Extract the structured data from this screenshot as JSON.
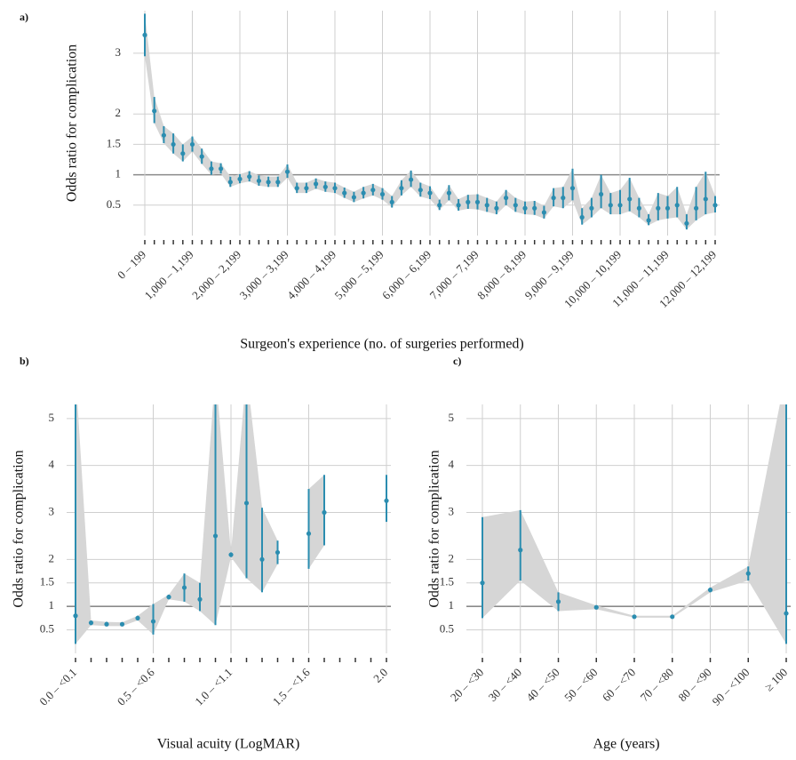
{
  "chart_data": [
    {
      "panel_label": "a)",
      "type": "errorbar",
      "ylabel": "Odds ratio for complication",
      "xlabel": "Surgeon's experience (no. of surgeries performed)",
      "categories": [
        "0 – 199",
        null,
        null,
        null,
        null,
        "1,000 – 1,199",
        null,
        null,
        null,
        null,
        "2,000 – 2,199",
        null,
        null,
        null,
        null,
        "3,000 – 3,199",
        null,
        null,
        null,
        null,
        "4,000 – 4,199",
        null,
        null,
        null,
        null,
        "5,000 – 5,199",
        null,
        null,
        null,
        null,
        "6,000 – 6,199",
        null,
        null,
        null,
        null,
        "7,000 – 7,199",
        null,
        null,
        null,
        null,
        "8,000 – 8,199",
        null,
        null,
        null,
        null,
        "9,000 – 9,199",
        null,
        null,
        null,
        null,
        "10,000 – 10,199",
        null,
        null,
        null,
        null,
        "11,000 – 11,199",
        null,
        null,
        null,
        null,
        "12,000 – 12,199"
      ],
      "values": [
        3.3,
        2.05,
        1.65,
        1.5,
        1.35,
        1.5,
        1.3,
        1.1,
        1.1,
        0.88,
        0.93,
        0.97,
        0.9,
        0.88,
        0.88,
        1.05,
        0.78,
        0.78,
        0.85,
        0.8,
        0.78,
        0.7,
        0.63,
        0.7,
        0.75,
        0.68,
        0.55,
        0.78,
        0.92,
        0.75,
        0.7,
        0.5,
        0.7,
        0.5,
        0.55,
        0.55,
        0.5,
        0.45,
        0.62,
        0.5,
        0.45,
        0.45,
        0.38,
        0.62,
        0.62,
        0.78,
        0.3,
        0.45,
        0.68,
        0.5,
        0.5,
        0.6,
        0.45,
        0.25,
        0.45,
        0.45,
        0.5,
        0.2,
        0.45,
        0.6,
        0.5
      ],
      "lower": [
        2.95,
        1.85,
        1.52,
        1.35,
        1.22,
        1.38,
        1.18,
        1.0,
        1.02,
        0.8,
        0.86,
        0.89,
        0.82,
        0.8,
        0.8,
        0.95,
        0.7,
        0.7,
        0.77,
        0.72,
        0.7,
        0.62,
        0.55,
        0.61,
        0.66,
        0.59,
        0.46,
        0.66,
        0.8,
        0.64,
        0.6,
        0.42,
        0.58,
        0.41,
        0.44,
        0.43,
        0.39,
        0.35,
        0.5,
        0.39,
        0.35,
        0.34,
        0.28,
        0.48,
        0.45,
        0.58,
        0.18,
        0.3,
        0.45,
        0.35,
        0.35,
        0.4,
        0.3,
        0.17,
        0.25,
        0.28,
        0.3,
        0.1,
        0.25,
        0.35,
        0.38
      ],
      "upper": [
        3.65,
        2.28,
        1.8,
        1.68,
        1.5,
        1.63,
        1.43,
        1.22,
        1.19,
        0.97,
        1.01,
        1.06,
        0.99,
        0.97,
        0.97,
        1.17,
        0.87,
        0.87,
        0.94,
        0.89,
        0.87,
        0.79,
        0.72,
        0.8,
        0.85,
        0.78,
        0.65,
        0.91,
        1.07,
        0.87,
        0.81,
        0.59,
        0.83,
        0.6,
        0.67,
        0.68,
        0.62,
        0.56,
        0.75,
        0.62,
        0.56,
        0.57,
        0.49,
        0.78,
        0.8,
        1.1,
        0.45,
        0.62,
        1.0,
        0.7,
        0.75,
        0.95,
        0.62,
        0.35,
        0.7,
        0.65,
        0.8,
        0.35,
        0.8,
        1.05,
        0.65
      ],
      "color": "#2b8db0",
      "band_color": "#d6d6d6",
      "reference_line": 1,
      "ylim": [
        0,
        3.7
      ],
      "yticks": [
        0.5,
        1,
        1.5,
        2,
        3
      ],
      "grid": true
    },
    {
      "panel_label": "b)",
      "type": "errorbar",
      "ylabel": "Odds ratio for complication",
      "xlabel": "Visual acuity (LogMAR)",
      "categories": [
        "0.0 – <0.1",
        null,
        null,
        null,
        null,
        "0.5 – <0.6",
        null,
        null,
        null,
        null,
        "1.0 – <1.1",
        null,
        null,
        null,
        null,
        "1.5 – <1.6",
        null,
        null,
        null,
        null,
        "2.0"
      ],
      "values": [
        0.8,
        0.65,
        0.62,
        0.62,
        0.75,
        0.68,
        1.2,
        1.4,
        1.15,
        2.5,
        2.1,
        3.2,
        2.0,
        2.15,
        null,
        2.55,
        3.0,
        null,
        null,
        null,
        3.25
      ],
      "lower": [
        0.2,
        0.6,
        0.58,
        0.58,
        0.7,
        0.4,
        1.15,
        1.1,
        0.9,
        0.6,
        2.05,
        1.6,
        1.3,
        1.9,
        null,
        1.8,
        2.3,
        null,
        null,
        null,
        2.8
      ],
      "upper": [
        6,
        0.7,
        0.67,
        0.66,
        0.8,
        1.05,
        1.25,
        1.7,
        1.5,
        6,
        2.15,
        6,
        3.1,
        2.4,
        null,
        3.5,
        3.8,
        null,
        null,
        null,
        3.8
      ],
      "color": "#2b8db0",
      "band_color": "#d6d6d6",
      "reference_line": 1,
      "ylim": [
        0,
        5.3
      ],
      "yticks": [
        0.5,
        1,
        1.5,
        2,
        3,
        4,
        5
      ],
      "grid": true
    },
    {
      "panel_label": "c)",
      "type": "errorbar",
      "ylabel": "Odds ratio for complication",
      "xlabel": "Age (years)",
      "categories": [
        "20 – <30",
        "30 – <40",
        "40 – <50",
        "50 – <60",
        "60 – <70",
        "70 – <80",
        "80 – <90",
        "90 – <100",
        "≥ 100"
      ],
      "values": [
        1.5,
        2.2,
        1.1,
        0.98,
        0.78,
        0.78,
        1.35,
        1.7,
        0.85
      ],
      "lower": [
        0.75,
        1.55,
        0.9,
        0.94,
        0.76,
        0.76,
        1.3,
        1.55,
        0.2
      ],
      "upper": [
        2.9,
        3.05,
        1.3,
        1.02,
        0.8,
        0.8,
        1.4,
        1.85,
        6
      ],
      "color": "#2b8db0",
      "band_color": "#d6d6d6",
      "reference_line": 1,
      "ylim": [
        0,
        5.3
      ],
      "yticks": [
        0.5,
        1,
        1.5,
        2,
        3,
        4,
        5
      ],
      "grid": true
    }
  ]
}
